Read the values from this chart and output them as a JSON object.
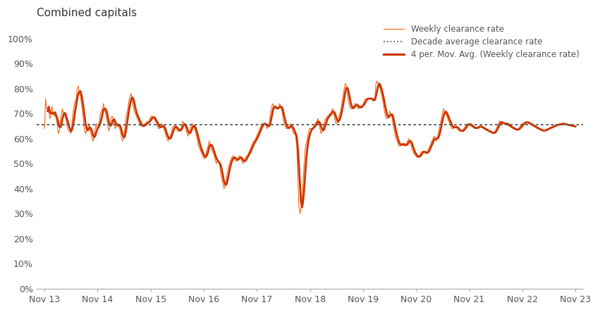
{
  "title": "Combined capitals",
  "decade_avg": 0.655,
  "ylim": [
    0,
    1.05
  ],
  "yticks": [
    0,
    0.1,
    0.2,
    0.3,
    0.4,
    0.5,
    0.6,
    0.7,
    0.8,
    0.9,
    1.0
  ],
  "xtick_labels": [
    "Nov 13",
    "Nov 14",
    "Nov 15",
    "Nov 16",
    "Nov 17",
    "Nov 18",
    "Nov 19",
    "Nov 20",
    "Nov 21",
    "Nov 22",
    "Nov 23"
  ],
  "legend_entries": [
    {
      "label": "Weekly clearance rate",
      "color": "#F07020",
      "lw": 0.9,
      "ls": "-"
    },
    {
      "label": "Decade average clearance rate",
      "color": "#555555",
      "lw": 1.3,
      "ls": ":"
    },
    {
      "label": "4 per. Mov. Avg. (Weekly clearance rate)",
      "color": "#CC3300",
      "lw": 2.2,
      "ls": "-"
    }
  ],
  "background_color": "#FFFFFF",
  "weekly_color": "#F07020",
  "mavg_color": "#CC3300",
  "decade_color": "#555555",
  "weekly_data": [
    0.64,
    0.76,
    0.72,
    0.72,
    0.71,
    0.68,
    0.69,
    0.73,
    0.7,
    0.69,
    0.7,
    0.68,
    0.66,
    0.62,
    0.63,
    0.67,
    0.7,
    0.72,
    0.69,
    0.7,
    0.68,
    0.66,
    0.64,
    0.63,
    0.63,
    0.62,
    0.66,
    0.7,
    0.73,
    0.75,
    0.76,
    0.8,
    0.81,
    0.78,
    0.77,
    0.74,
    0.71,
    0.67,
    0.63,
    0.62,
    0.64,
    0.64,
    0.66,
    0.64,
    0.62,
    0.6,
    0.59,
    0.61,
    0.64,
    0.66,
    0.64,
    0.64,
    0.67,
    0.7,
    0.71,
    0.72,
    0.74,
    0.71,
    0.7,
    0.68,
    0.65,
    0.63,
    0.65,
    0.68,
    0.69,
    0.68,
    0.66,
    0.64,
    0.65,
    0.66,
    0.66,
    0.64,
    0.63,
    0.6,
    0.59,
    0.6,
    0.64,
    0.68,
    0.7,
    0.72,
    0.75,
    0.77,
    0.78,
    0.76,
    0.73,
    0.71,
    0.7,
    0.69,
    0.68,
    0.67,
    0.66,
    0.65,
    0.65,
    0.65,
    0.65,
    0.66,
    0.66,
    0.67,
    0.66,
    0.67,
    0.68,
    0.69,
    0.69,
    0.68,
    0.68,
    0.67,
    0.66,
    0.65,
    0.64,
    0.64,
    0.65,
    0.66,
    0.65,
    0.64,
    0.63,
    0.61,
    0.6,
    0.59,
    0.6,
    0.61,
    0.62,
    0.64,
    0.65,
    0.65,
    0.65,
    0.64,
    0.63,
    0.63,
    0.63,
    0.64,
    0.65,
    0.67,
    0.66,
    0.65,
    0.64,
    0.62,
    0.61,
    0.62,
    0.64,
    0.65,
    0.66,
    0.65,
    0.64,
    0.63,
    0.61,
    0.59,
    0.57,
    0.56,
    0.55,
    0.54,
    0.53,
    0.52,
    0.52,
    0.54,
    0.56,
    0.57,
    0.59,
    0.58,
    0.56,
    0.55,
    0.54,
    0.53,
    0.51,
    0.5,
    0.51,
    0.51,
    0.49,
    0.46,
    0.44,
    0.42,
    0.4,
    0.41,
    0.43,
    0.46,
    0.48,
    0.5,
    0.51,
    0.52,
    0.53,
    0.53,
    0.52,
    0.51,
    0.51,
    0.52,
    0.53,
    0.53,
    0.52,
    0.51,
    0.5,
    0.51,
    0.52,
    0.53,
    0.53,
    0.54,
    0.55,
    0.56,
    0.57,
    0.58,
    0.59,
    0.59,
    0.6,
    0.61,
    0.62,
    0.63,
    0.64,
    0.65,
    0.66,
    0.66,
    0.66,
    0.66,
    0.65,
    0.64,
    0.65,
    0.66,
    0.7,
    0.72,
    0.74,
    0.73,
    0.72,
    0.72,
    0.72,
    0.72,
    0.73,
    0.74,
    0.72,
    0.71,
    0.68,
    0.66,
    0.65,
    0.64,
    0.64,
    0.64,
    0.65,
    0.66,
    0.65,
    0.63,
    0.62,
    0.62,
    0.61,
    0.57,
    0.45,
    0.33,
    0.3,
    0.32,
    0.35,
    0.43,
    0.5,
    0.56,
    0.58,
    0.6,
    0.62,
    0.64,
    0.64,
    0.64,
    0.64,
    0.65,
    0.66,
    0.66,
    0.67,
    0.68,
    0.66,
    0.64,
    0.62,
    0.63,
    0.64,
    0.66,
    0.68,
    0.68,
    0.69,
    0.69,
    0.7,
    0.7,
    0.71,
    0.72,
    0.7,
    0.68,
    0.66,
    0.66,
    0.67,
    0.69,
    0.7,
    0.72,
    0.75,
    0.78,
    0.8,
    0.82,
    0.81,
    0.78,
    0.75,
    0.73,
    0.72,
    0.72,
    0.72,
    0.73,
    0.74,
    0.74,
    0.73,
    0.72,
    0.72,
    0.73,
    0.73,
    0.73,
    0.74,
    0.75,
    0.76,
    0.76,
    0.76,
    0.76,
    0.76,
    0.76,
    0.76,
    0.75,
    0.75,
    0.76,
    0.82,
    0.83,
    0.82,
    0.81,
    0.8,
    0.78,
    0.76,
    0.74,
    0.71,
    0.69,
    0.68,
    0.68,
    0.69,
    0.71,
    0.7,
    0.69,
    0.66,
    0.64,
    0.62,
    0.6,
    0.59,
    0.58,
    0.57,
    0.57,
    0.58,
    0.58,
    0.58,
    0.57,
    0.57,
    0.58,
    0.59,
    0.6,
    0.59,
    0.58,
    0.56,
    0.55,
    0.54,
    0.535,
    0.53,
    0.525,
    0.525,
    0.53,
    0.54,
    0.545,
    0.55,
    0.55,
    0.545,
    0.54,
    0.54,
    0.55,
    0.56,
    0.57,
    0.58,
    0.59,
    0.6,
    0.61,
    0.6,
    0.59,
    0.6,
    0.62,
    0.64,
    0.66,
    0.68,
    0.7,
    0.72,
    0.71,
    0.7,
    0.69,
    0.68,
    0.67,
    0.66,
    0.65,
    0.64,
    0.64,
    0.65,
    0.65,
    0.645,
    0.64,
    0.635,
    0.63,
    0.63,
    0.63,
    0.63,
    0.64,
    0.645,
    0.65,
    0.655,
    0.66,
    0.66,
    0.655,
    0.65,
    0.648,
    0.645,
    0.642,
    0.64,
    0.642,
    0.645,
    0.648,
    0.65,
    0.648,
    0.645,
    0.642,
    0.64,
    0.638,
    0.635,
    0.632,
    0.63,
    0.628,
    0.626,
    0.624,
    0.622,
    0.62,
    0.625,
    0.63,
    0.64,
    0.65,
    0.66,
    0.67,
    0.67,
    0.66,
    0.66,
    0.66,
    0.66,
    0.66,
    0.66,
    0.655,
    0.65,
    0.648,
    0.645,
    0.642,
    0.64,
    0.638,
    0.636,
    0.634,
    0.635,
    0.64,
    0.645,
    0.65,
    0.655,
    0.66,
    0.662,
    0.665,
    0.668,
    0.665,
    0.662,
    0.66,
    0.658,
    0.655,
    0.652,
    0.65,
    0.648,
    0.645,
    0.642,
    0.64,
    0.638,
    0.636,
    0.634,
    0.632,
    0.63,
    0.632,
    0.634,
    0.636,
    0.638,
    0.64,
    0.642,
    0.644,
    0.646,
    0.648,
    0.65,
    0.652,
    0.654,
    0.655,
    0.656,
    0.657,
    0.658,
    0.659,
    0.66,
    0.659,
    0.658,
    0.657,
    0.656,
    0.655,
    0.654,
    0.653,
    0.652,
    0.651,
    0.65,
    0.649,
    0.648,
    0.647
  ]
}
